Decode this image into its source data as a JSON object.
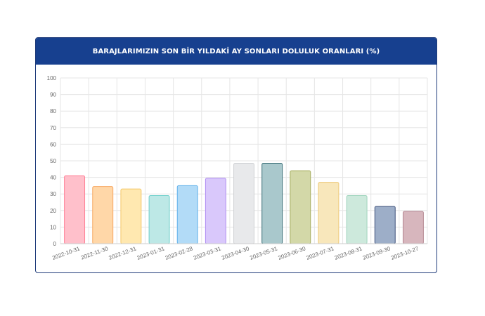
{
  "header": {
    "title": "BARAJLARIMIZIN SON BİR YILDAKİ AY SONLARI DOLULUK ORANLARI (%)"
  },
  "chart_data": {
    "type": "bar",
    "title": "BARAJLARIMIZIN SON BİR YILDAKİ AY SONLARI DOLULUK ORANLARI (%)",
    "categories": [
      "2022-10-31",
      "2022-11-30",
      "2022-12-31",
      "2023-01-31",
      "2023-02-28",
      "2023-03-31",
      "2023-04-30",
      "2023-05-31",
      "2023-06-30",
      "2023-07-31",
      "2023-08-31",
      "2023-09-30",
      "2023-10-27"
    ],
    "values": [
      41,
      34.5,
      33,
      29,
      35,
      39.5,
      48.5,
      48.5,
      44,
      37,
      29,
      22.5,
      19.5
    ],
    "ylim": [
      0,
      100
    ],
    "yticks": [
      0,
      10,
      20,
      30,
      40,
      50,
      60,
      70,
      80,
      90,
      100
    ],
    "grid": true,
    "colors": {
      "fills": [
        "#ffc0cb",
        "#ffd7a8",
        "#ffe8b0",
        "#bde8e6",
        "#b2dbf7",
        "#d9c8fb",
        "#e8e9eb",
        "#a9c8cc",
        "#d3d8a8",
        "#f8e7bb",
        "#cde9dc",
        "#9daec8",
        "#d7b6bd"
      ],
      "strokes": [
        "#ff7f95",
        "#f7a861",
        "#f5c96a",
        "#6ecfcb",
        "#5fb0ea",
        "#b08df2",
        "#cfd1d4",
        "#3b6f78",
        "#a6ad5f",
        "#edc876",
        "#9fd4bd",
        "#3d4f79",
        "#b58792"
      ],
      "grid": "#e6e6e6",
      "axis_text": "#666666",
      "header_bg": "#17408f"
    }
  }
}
